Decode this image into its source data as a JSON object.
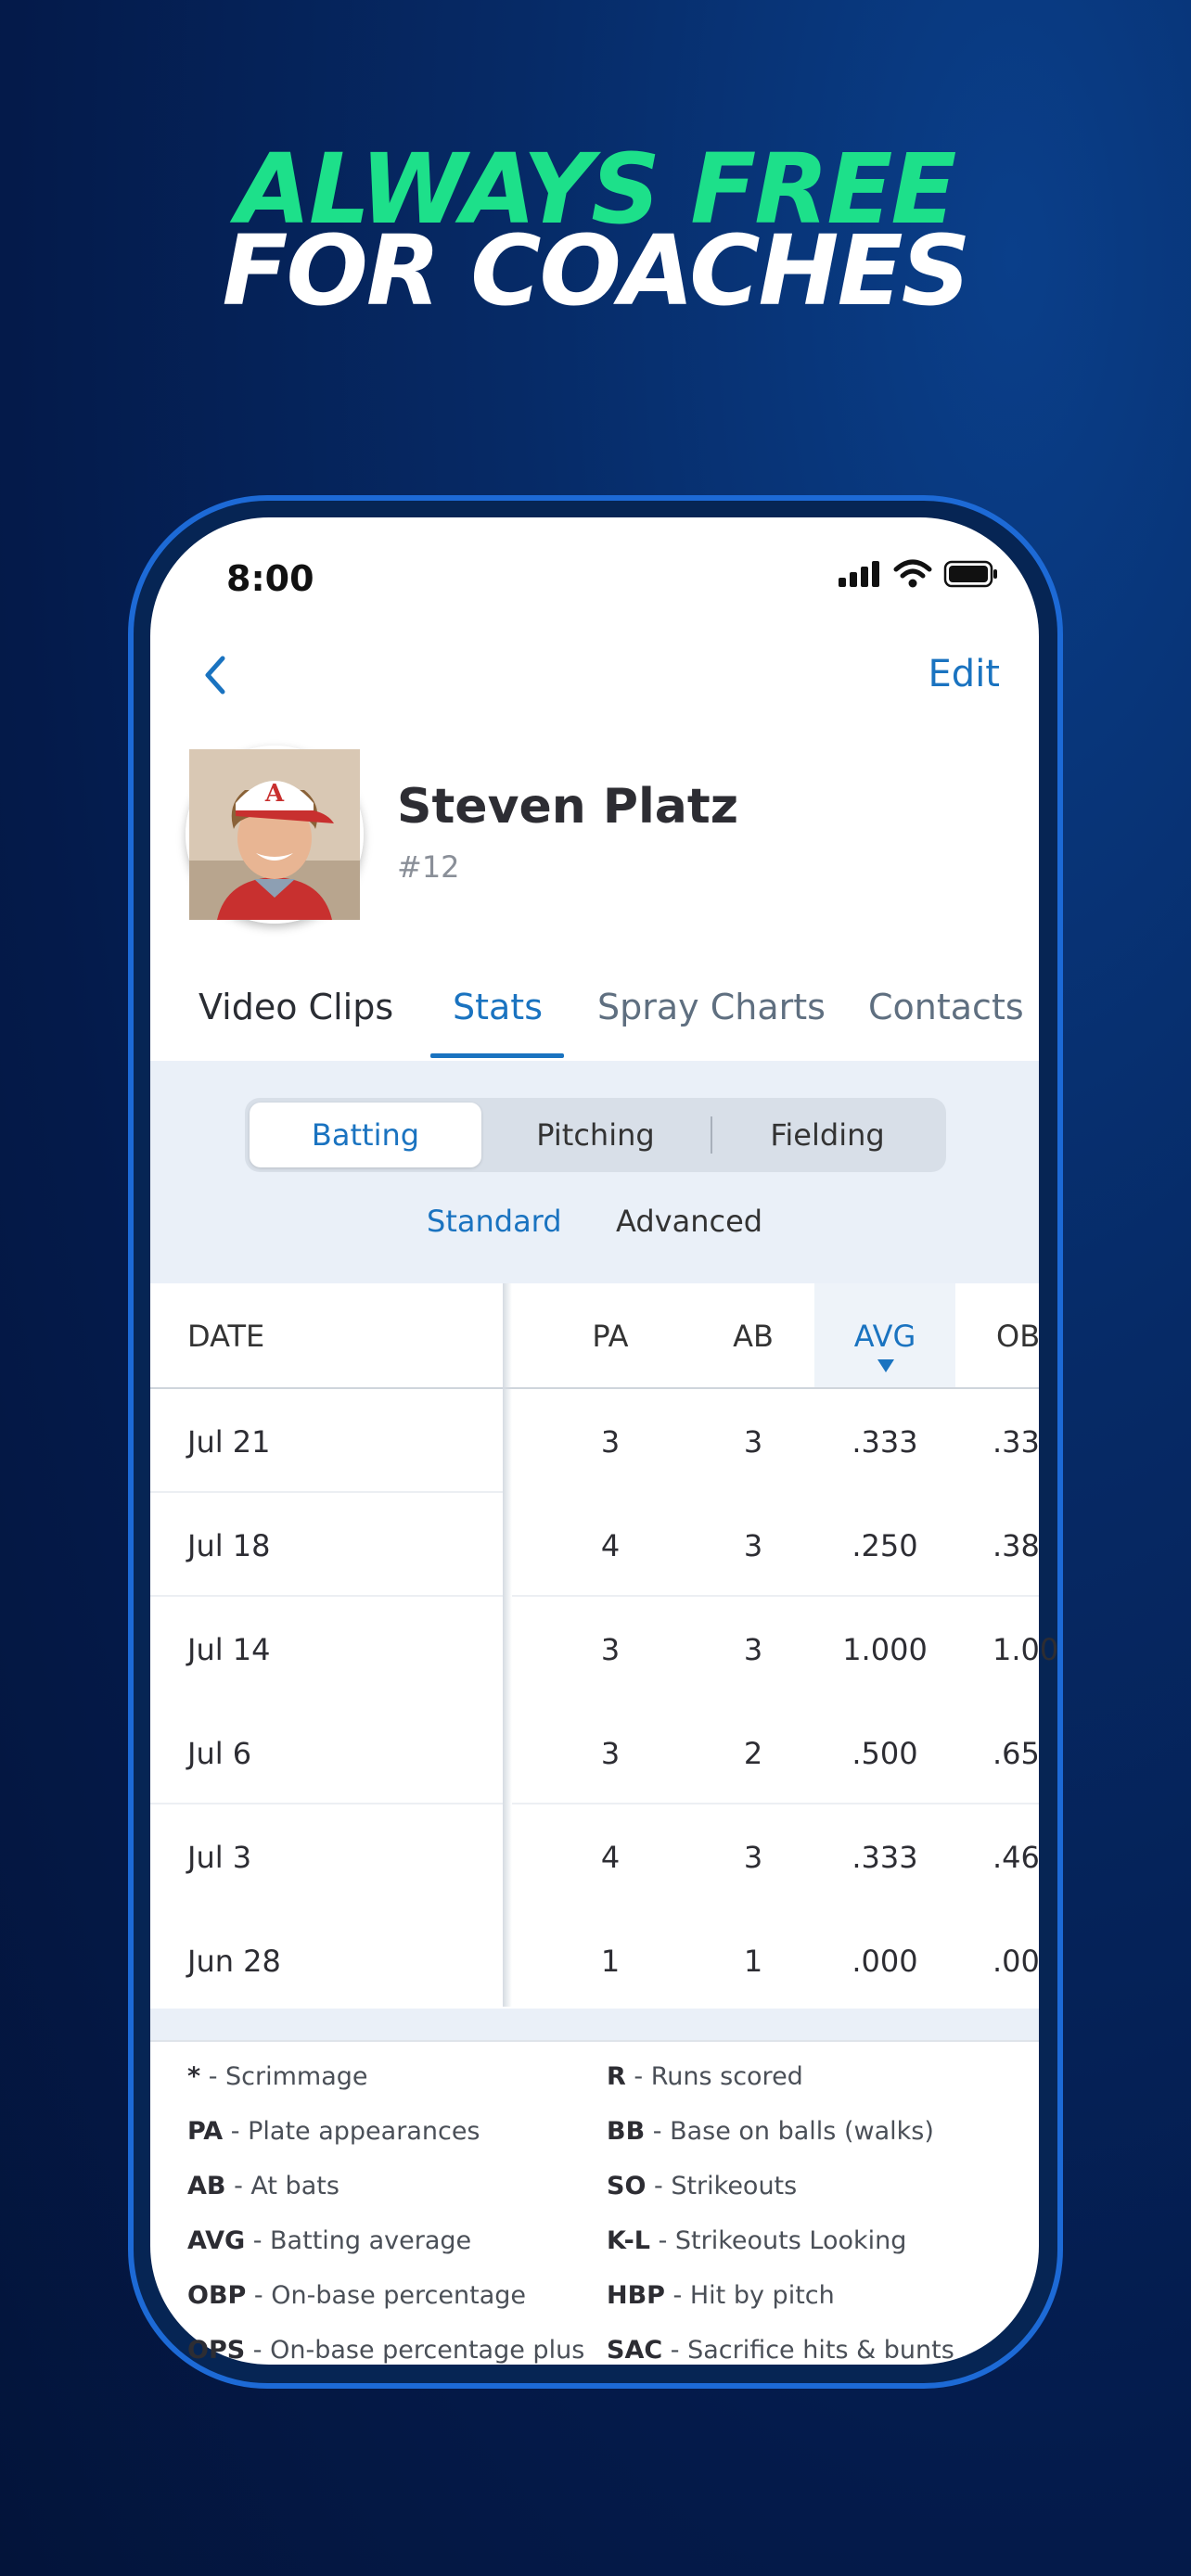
{
  "headline": {
    "line1": "ALWAYS FREE",
    "line2": "FOR COACHES"
  },
  "status_bar": {
    "time": "8:00"
  },
  "nav": {
    "edit_label": "Edit"
  },
  "player": {
    "name": "Steven Platz",
    "number": "#12"
  },
  "tabs": [
    {
      "label": "Video Clips"
    },
    {
      "label": "Stats",
      "active": true
    },
    {
      "label": "Spray Charts"
    },
    {
      "label": "Contacts"
    }
  ],
  "segments": [
    {
      "label": "Batting",
      "active": true
    },
    {
      "label": "Pitching"
    },
    {
      "label": "Fielding"
    }
  ],
  "sub_toggle": {
    "standard": "Standard",
    "advanced": "Advanced"
  },
  "table": {
    "columns": [
      "DATE",
      "PA",
      "AB",
      "AVG",
      "OB"
    ],
    "sorted_column": "AVG",
    "rows": [
      {
        "date": "Jul 21",
        "pa": "3",
        "ab": "3",
        "avg": ".333",
        "obp": ".33"
      },
      {
        "date": "Jul 18",
        "pa": "4",
        "ab": "3",
        "avg": ".250",
        "obp": ".38"
      },
      {
        "date": "Jul 14",
        "pa": "3",
        "ab": "3",
        "avg": "1.000",
        "obp": "1.00"
      },
      {
        "date": "Jul 6",
        "pa": "3",
        "ab": "2",
        "avg": ".500",
        "obp": ".65"
      },
      {
        "date": "Jul 3",
        "pa": "4",
        "ab": "3",
        "avg": ".333",
        "obp": ".46"
      },
      {
        "date": "Jun 28",
        "pa": "1",
        "ab": "1",
        "avg": ".000",
        "obp": ".00"
      }
    ]
  },
  "legend": {
    "left": [
      {
        "key": "*",
        "desc": " - Scrimmage"
      },
      {
        "key": "PA",
        "desc": " - Plate appearances"
      },
      {
        "key": "AB",
        "desc": " - At bats"
      },
      {
        "key": "AVG",
        "desc": " - Batting average"
      },
      {
        "key": "OBP",
        "desc": " - On-base percentage"
      },
      {
        "key": "OPS",
        "desc": " - On-base percentage plus"
      }
    ],
    "right": [
      {
        "key": "R",
        "desc": " - Runs scored"
      },
      {
        "key": "BB",
        "desc": " - Base on balls (walks)"
      },
      {
        "key": "SO",
        "desc": " - Strikeouts"
      },
      {
        "key": "K-L",
        "desc": " - Strikeouts Looking"
      },
      {
        "key": "HBP",
        "desc": " - Hit by pitch"
      },
      {
        "key": "SAC",
        "desc": " - Sacrifice hits & bunts"
      }
    ]
  },
  "colors": {
    "accent": "#1a73c0",
    "headline_green": "#1de08a",
    "frame_blue": "#1d6ad6"
  }
}
